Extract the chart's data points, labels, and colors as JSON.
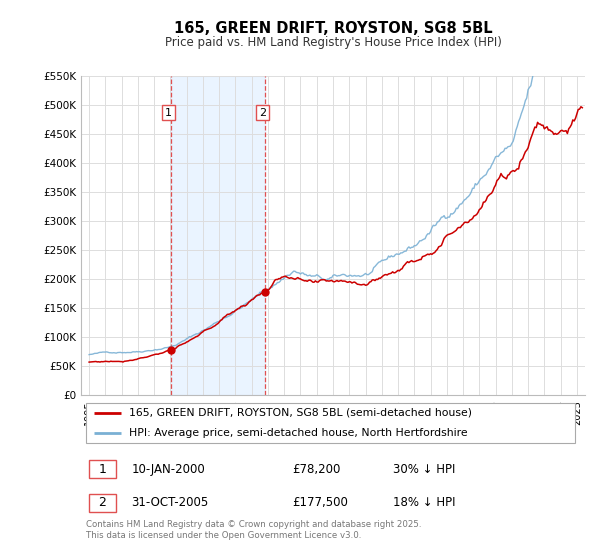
{
  "title": "165, GREEN DRIFT, ROYSTON, SG8 5BL",
  "subtitle": "Price paid vs. HM Land Registry's House Price Index (HPI)",
  "background_color": "#ffffff",
  "plot_bg_color": "#ffffff",
  "grid_color": "#dddddd",
  "legend1": "165, GREEN DRIFT, ROYSTON, SG8 5BL (semi-detached house)",
  "legend2": "HPI: Average price, semi-detached house, North Hertfordshire",
  "sale1_date": "10-JAN-2000",
  "sale1_price": "£78,200",
  "sale1_hpi": "30% ↓ HPI",
  "sale1_year": 2000.03,
  "sale1_value": 78200,
  "sale2_date": "31-OCT-2005",
  "sale2_price": "£177,500",
  "sale2_hpi": "18% ↓ HPI",
  "sale2_year": 2005.83,
  "sale2_value": 177500,
  "footnote": "Contains HM Land Registry data © Crown copyright and database right 2025.\nThis data is licensed under the Open Government Licence v3.0.",
  "price_color": "#cc0000",
  "hpi_color": "#7ab0d4",
  "vline_color": "#e05050",
  "shade_color": "#ddeeff",
  "ylim_min": 0,
  "ylim_max": 550000,
  "yticks": [
    0,
    50000,
    100000,
    150000,
    200000,
    250000,
    300000,
    350000,
    400000,
    450000,
    500000,
    550000
  ],
  "ytick_labels": [
    "£0",
    "£50K",
    "£100K",
    "£150K",
    "£200K",
    "£250K",
    "£300K",
    "£350K",
    "£400K",
    "£450K",
    "£500K",
    "£550K"
  ],
  "xlim_min": 1994.5,
  "xlim_max": 2025.5,
  "xticks": [
    1995,
    1996,
    1997,
    1998,
    1999,
    2000,
    2001,
    2002,
    2003,
    2004,
    2005,
    2006,
    2007,
    2008,
    2009,
    2010,
    2011,
    2012,
    2013,
    2014,
    2015,
    2016,
    2017,
    2018,
    2019,
    2020,
    2021,
    2022,
    2023,
    2024,
    2025
  ]
}
